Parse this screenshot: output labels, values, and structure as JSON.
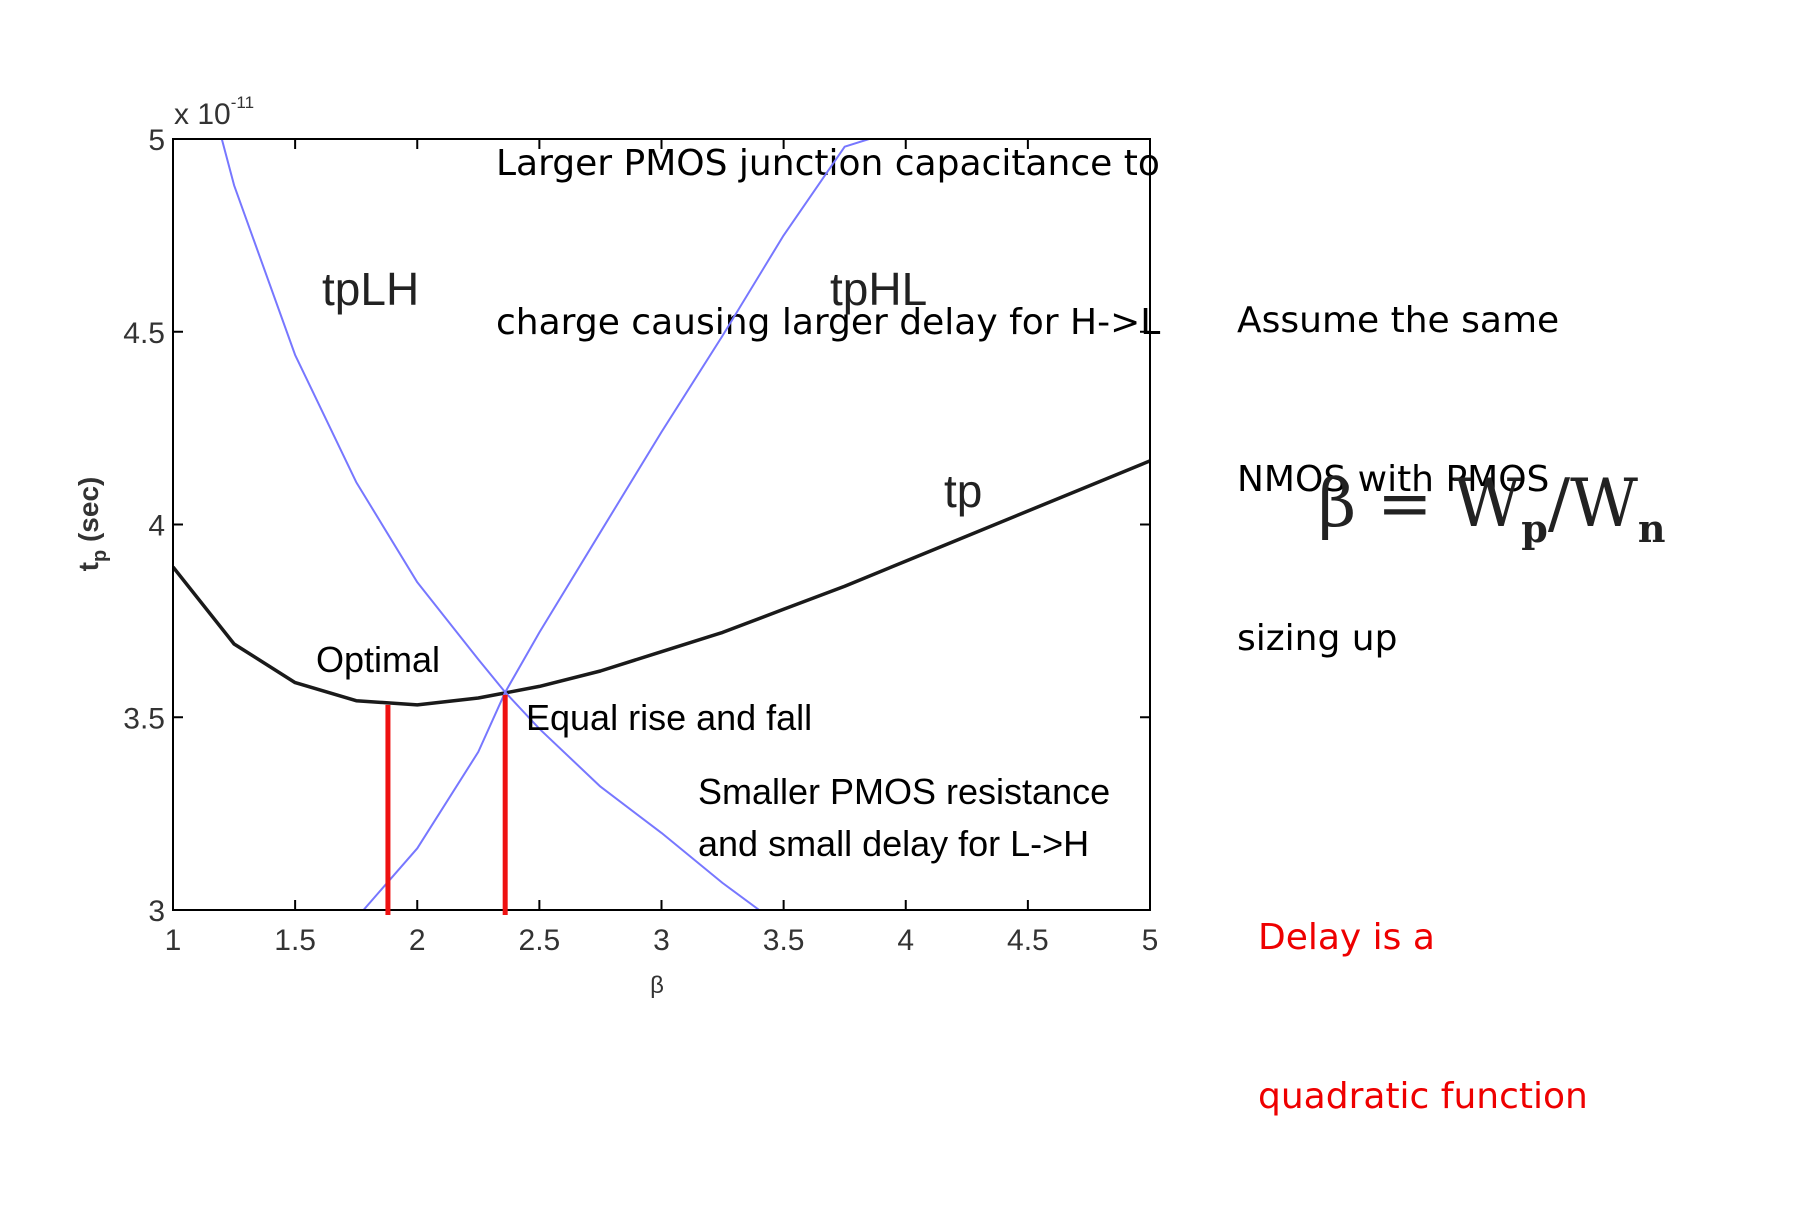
{
  "annotations": {
    "top_note": [
      "Larger PMOS junction capacitance to",
      "charge causing larger delay for H->L"
    ],
    "right_note": [
      "Assume the same",
      "NMOS with PMOS",
      "sizing up"
    ],
    "formula": {
      "beta": "β",
      "equals": " = W",
      "sub_p": "p",
      "slash": "/W",
      "sub_n": "n"
    },
    "conclusion": [
      "Delay is a",
      "quadratic function"
    ],
    "optimal": "Optimal",
    "equal": "Equal rise and fall",
    "lower_note": [
      "Smaller PMOS resistance",
      "and small delay for L->H"
    ]
  },
  "colors": {
    "curve_tp": "#1a1a1a",
    "curve_edges": "#7777ff",
    "marker": "#ee1111",
    "conclusion_text": "#ee0000"
  },
  "chart_data": {
    "type": "line",
    "xlabel": "β",
    "ylabel_main": "t",
    "ylabel_sub": "p",
    "ylabel_unit": " (sec)",
    "y_multiplier_prefix": "x 10",
    "y_multiplier_exp": "-11",
    "xlim": [
      1,
      5
    ],
    "ylim": [
      3,
      5
    ],
    "x_ticks": [
      1,
      1.5,
      2,
      2.5,
      3,
      3.5,
      4,
      4.5,
      5
    ],
    "x_tick_labels": [
      "1",
      "1.5",
      "2",
      "2.5",
      "3",
      "3.5",
      "4",
      "4.5",
      "5"
    ],
    "y_ticks": [
      3,
      3.5,
      4,
      4.5,
      5
    ],
    "y_tick_labels": [
      "3",
      "3.5",
      "4",
      "4.5",
      "5"
    ],
    "grid": false,
    "series": [
      {
        "name": "tp",
        "x": [
          1,
          1.25,
          1.5,
          1.75,
          2,
          2.25,
          2.5,
          2.75,
          3,
          3.25,
          3.5,
          3.75,
          4,
          4.25,
          4.5,
          4.75,
          5
        ],
        "y": [
          3.89,
          3.69,
          3.59,
          3.543,
          3.532,
          3.55,
          3.58,
          3.62,
          3.67,
          3.72,
          3.78,
          3.84,
          3.905,
          3.97,
          4.035,
          4.1,
          4.165
        ]
      },
      {
        "name": "tpLH",
        "x": [
          1.2,
          1.25,
          1.5,
          1.75,
          2,
          2.25,
          2.36,
          2.5,
          2.75,
          3,
          3.25,
          3.4
        ],
        "y": [
          5.0,
          4.88,
          4.44,
          4.11,
          3.85,
          3.65,
          3.565,
          3.47,
          3.32,
          3.2,
          3.07,
          3.0
        ]
      },
      {
        "name": "tpHL",
        "x": [
          1.78,
          2,
          2.25,
          2.36,
          2.5,
          2.75,
          3,
          3.25,
          3.5,
          3.75,
          3.85
        ],
        "y": [
          3.0,
          3.16,
          3.41,
          3.565,
          3.72,
          3.98,
          4.24,
          4.49,
          4.75,
          4.98,
          5.0
        ]
      }
    ],
    "markers": [
      {
        "name": "Optimal",
        "x": 1.88
      },
      {
        "name": "Equal rise and fall",
        "x": 2.36
      }
    ]
  }
}
